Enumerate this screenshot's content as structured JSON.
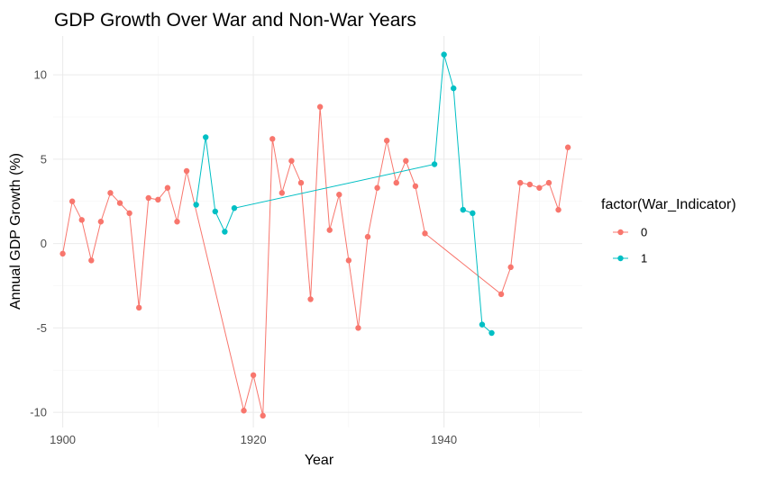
{
  "chart_data": {
    "type": "line",
    "title": "GDP Growth Over War and Non-War Years",
    "xlabel": "Year",
    "ylabel": "Annual GDP Growth (%)",
    "xlim": [
      1899,
      1954.5
    ],
    "ylim": [
      -10.9,
      12.3
    ],
    "xticks": [
      1900,
      1920,
      1940
    ],
    "yticks": [
      -10,
      -5,
      0,
      5,
      10
    ],
    "grid": true,
    "legend": {
      "title": "factor(War_Indicator)",
      "placement": "right"
    },
    "series": [
      {
        "name": "0",
        "color": "#F8766D",
        "x": [
          1900,
          1901,
          1902,
          1903,
          1904,
          1905,
          1906,
          1907,
          1908,
          1909,
          1910,
          1911,
          1912,
          1913,
          1919,
          1920,
          1921,
          1922,
          1923,
          1924,
          1925,
          1926,
          1927,
          1928,
          1929,
          1930,
          1931,
          1932,
          1933,
          1934,
          1935,
          1936,
          1937,
          1938,
          1946,
          1947,
          1948,
          1949,
          1950,
          1951,
          1952,
          1953
        ],
        "y": [
          -0.6,
          2.5,
          1.4,
          -1.0,
          1.3,
          3.0,
          2.4,
          1.8,
          -3.8,
          2.7,
          2.6,
          3.3,
          1.3,
          4.3,
          -9.9,
          -7.8,
          -10.2,
          6.2,
          3.0,
          4.9,
          3.6,
          -3.3,
          8.1,
          0.8,
          2.9,
          -1.0,
          -5.0,
          0.4,
          3.3,
          6.1,
          3.6,
          4.9,
          3.4,
          0.6,
          -3.0,
          -1.4,
          3.6,
          3.5,
          3.3,
          3.6,
          2.0,
          5.7
        ]
      },
      {
        "name": "1",
        "color": "#00BFC4",
        "x": [
          1914,
          1915,
          1916,
          1917,
          1918,
          1939,
          1940,
          1941,
          1942,
          1943,
          1944,
          1945
        ],
        "y": [
          2.3,
          6.3,
          1.9,
          0.7,
          2.1,
          4.7,
          11.2,
          9.2,
          2.0,
          1.8,
          -4.8,
          -5.3
        ]
      }
    ]
  }
}
